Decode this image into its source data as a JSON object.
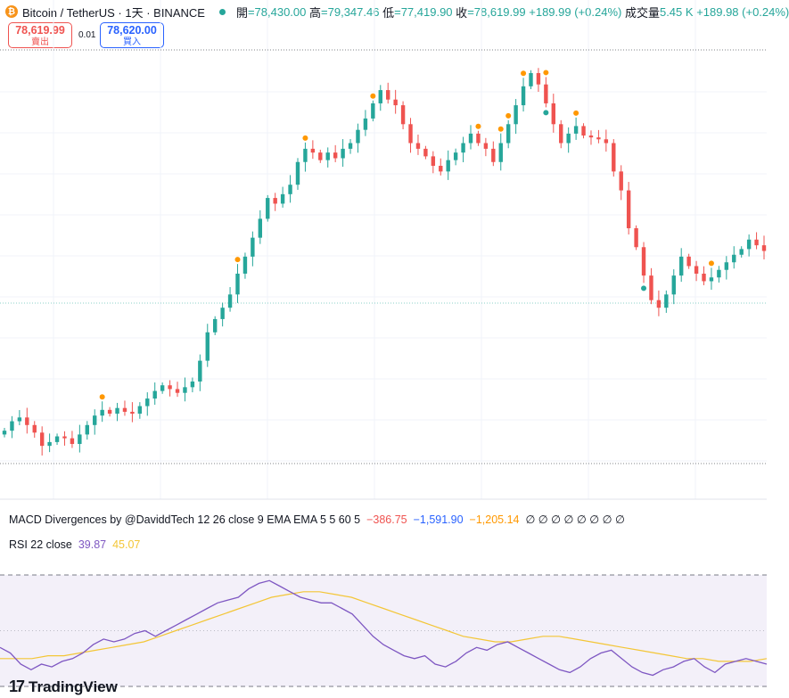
{
  "header": {
    "symbol_title": "Bitcoin / TetherUS · 1天 · BINANCE",
    "open_label": "開",
    "open_value": "=78,430.00",
    "high_label": "高",
    "high_value": "=79,347.46",
    "low_label": "低",
    "low_value": "=77,419.90",
    "close_label": "收",
    "close_value": "=78,619.99",
    "change": "+189.99 (+0.24%)",
    "volume_label": "成交量",
    "volume_value": "5.45 K",
    "volume_change": "+189.98 (+0.24%)"
  },
  "trade": {
    "sell_price": "78,619.99",
    "sell_label": "賣出",
    "spread": "0.01",
    "buy_price": "78,620.00",
    "buy_label": "買入"
  },
  "macd": {
    "title": "MACD Divergences by @DaviddTech 12 26 close 9 EMA EMA 5 5 60 5",
    "v1": "−386.75",
    "v2": "−1,591.90",
    "v3": "−1,205.14",
    "empties": "∅ ∅ ∅ ∅ ∅ ∅ ∅ ∅"
  },
  "rsi": {
    "title": "RSI 22 close",
    "v1": "39.87",
    "v2": "45.07"
  },
  "branding": {
    "logo_mark": "17",
    "logo_text": "TradingView"
  },
  "colors": {
    "up": "#26a69a",
    "down": "#ef5350",
    "signal": "#ff9800",
    "rsi_line": "#7e57c2",
    "rsi_ma": "#f3c637"
  },
  "chart_data": [
    {
      "type": "candlestick",
      "title": "Bitcoin / TetherUS · 1天 · BINANCE",
      "last": {
        "open": 78430.0,
        "high": 79347.46,
        "low": 77419.9,
        "close": 78619.99
      },
      "close_series": [
        70.3,
        70.8,
        71.0,
        70.6,
        70.2,
        69.5,
        69.7,
        70.0,
        69.9,
        69.6,
        70.1,
        70.6,
        71.1,
        71.4,
        71.2,
        71.5,
        71.3,
        71.2,
        71.6,
        72.0,
        72.4,
        72.7,
        72.5,
        72.3,
        72.6,
        72.9,
        74.0,
        75.5,
        76.2,
        76.8,
        77.5,
        78.6,
        79.5,
        80.5,
        81.5,
        82.6,
        82.3,
        82.8,
        83.3,
        84.5,
        85.2,
        85.0,
        84.6,
        85.0,
        84.7,
        85.2,
        85.5,
        86.2,
        86.8,
        87.6,
        88.3,
        87.8,
        87.5,
        86.5,
        85.5,
        85.2,
        84.8,
        84.3,
        84.0,
        84.6,
        85.0,
        85.5,
        86.0,
        85.5,
        85.2,
        84.5,
        85.5,
        86.5,
        87.5,
        88.5,
        89.2,
        88.6,
        87.6,
        86.5,
        85.5,
        86.0,
        86.4,
        85.9,
        85.8,
        85.7,
        85.5,
        84.0,
        83.0,
        81.0,
        80.0,
        78.5,
        77.2,
        76.8,
        77.5,
        78.5,
        79.5,
        79.0,
        78.6,
        78.2,
        78.4,
        78.8,
        79.2,
        79.6,
        79.9,
        80.4,
        80.1,
        79.8
      ],
      "signal_markers": [
        "divergence dots (orange) above candles",
        "divergence dots (teal) below candles"
      ]
    },
    {
      "type": "line",
      "title": "RSI 22 close",
      "series": [
        {
          "name": "RSI",
          "values": [
            44,
            42,
            38,
            36,
            38,
            37,
            39,
            40,
            42,
            45,
            47,
            46,
            47,
            49,
            50,
            48,
            50,
            52,
            54,
            56,
            58,
            60,
            61,
            62,
            65,
            67,
            68,
            66,
            64,
            62,
            61,
            60,
            60,
            58,
            56,
            52,
            48,
            45,
            43,
            41,
            40,
            41,
            38,
            37,
            39,
            42,
            44,
            43,
            45,
            46,
            44,
            42,
            40,
            38,
            36,
            35,
            37,
            40,
            42,
            43,
            40,
            37,
            35,
            34,
            36,
            37,
            39,
            40,
            37,
            35,
            38,
            39,
            40,
            39,
            38
          ]
        },
        {
          "name": "MA",
          "values": [
            40,
            40,
            40,
            41,
            41,
            42,
            43,
            44,
            45,
            46,
            48,
            50,
            52,
            54,
            56,
            58,
            60,
            62,
            63,
            64,
            64,
            63,
            62,
            60,
            58,
            56,
            54,
            52,
            50,
            48,
            47,
            46,
            46,
            47,
            48,
            48,
            47,
            46,
            45,
            44,
            43,
            42,
            41,
            40,
            40,
            39,
            39,
            39,
            40
          ]
        }
      ],
      "ylim": [
        30,
        70
      ],
      "bands": [
        30,
        70
      ]
    }
  ]
}
